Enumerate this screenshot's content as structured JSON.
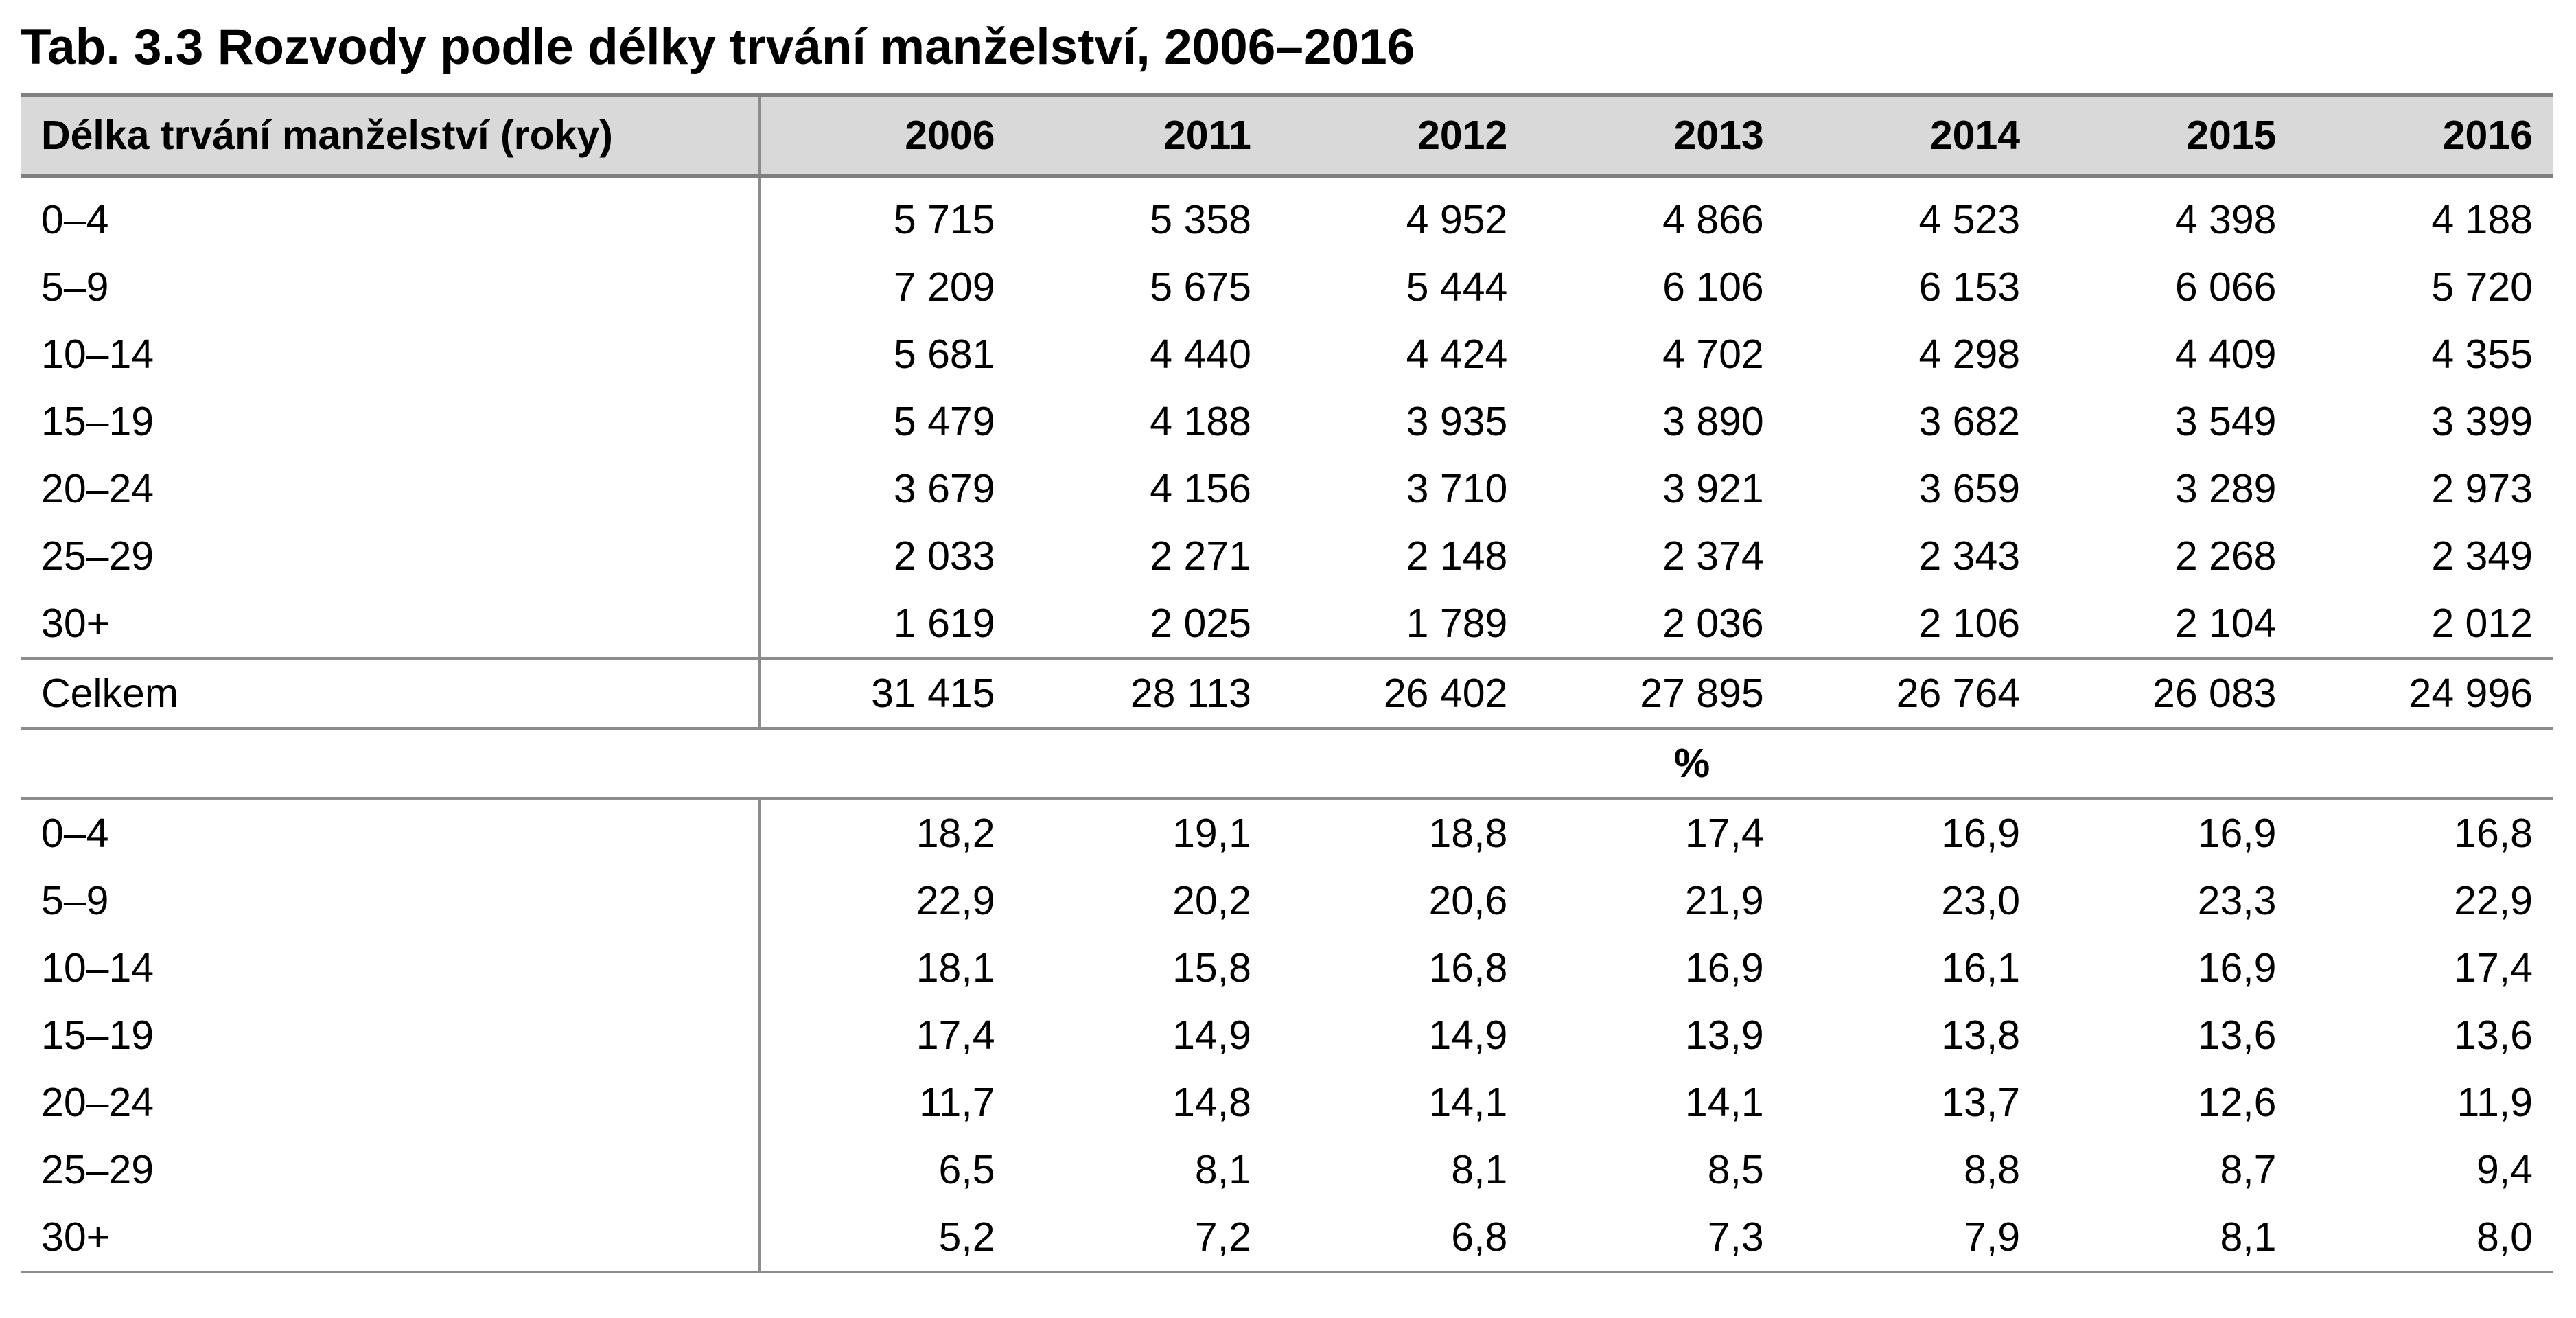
{
  "title": "Tab. 3.3 Rozvody podle délky trvání manželství, 2006–2016",
  "header": {
    "label": "Délka trvání manželství (roky)",
    "years": [
      "2006",
      "2011",
      "2012",
      "2013",
      "2014",
      "2015",
      "2016"
    ]
  },
  "absolute": [
    {
      "label": "0–4",
      "values": [
        "5 715",
        "5 358",
        "4 952",
        "4 866",
        "4 523",
        "4 398",
        "4 188"
      ]
    },
    {
      "label": "5–9",
      "values": [
        "7 209",
        "5 675",
        "5 444",
        "6 106",
        "6 153",
        "6 066",
        "5 720"
      ]
    },
    {
      "label": "10–14",
      "values": [
        "5 681",
        "4 440",
        "4 424",
        "4 702",
        "4 298",
        "4 409",
        "4 355"
      ]
    },
    {
      "label": "15–19",
      "values": [
        "5 479",
        "4 188",
        "3 935",
        "3 890",
        "3 682",
        "3 549",
        "3 399"
      ]
    },
    {
      "label": "20–24",
      "values": [
        "3 679",
        "4 156",
        "3 710",
        "3 921",
        "3 659",
        "3 289",
        "2 973"
      ]
    },
    {
      "label": "25–29",
      "values": [
        "2 033",
        "2 271",
        "2 148",
        "2 374",
        "2 343",
        "2 268",
        "2 349"
      ]
    },
    {
      "label": "30+",
      "values": [
        "1 619",
        "2 025",
        "1 789",
        "2 036",
        "2 106",
        "2 104",
        "2 012"
      ]
    }
  ],
  "total": {
    "label": "Celkem",
    "values": [
      "31 415",
      "28 113",
      "26 402",
      "27 895",
      "26 764",
      "26 083",
      "24 996"
    ]
  },
  "percent_label": "%",
  "percent": [
    {
      "label": "0–4",
      "values": [
        "18,2",
        "19,1",
        "18,8",
        "17,4",
        "16,9",
        "16,9",
        "16,8"
      ]
    },
    {
      "label": "5–9",
      "values": [
        "22,9",
        "20,2",
        "20,6",
        "21,9",
        "23,0",
        "23,3",
        "22,9"
      ]
    },
    {
      "label": "10–14",
      "values": [
        "18,1",
        "15,8",
        "16,8",
        "16,9",
        "16,1",
        "16,9",
        "17,4"
      ]
    },
    {
      "label": "15–19",
      "values": [
        "17,4",
        "14,9",
        "14,9",
        "13,9",
        "13,8",
        "13,6",
        "13,6"
      ]
    },
    {
      "label": "20–24",
      "values": [
        "11,7",
        "14,8",
        "14,1",
        "14,1",
        "13,7",
        "12,6",
        "11,9"
      ]
    },
    {
      "label": "25–29",
      "values": [
        "6,5",
        "8,1",
        "8,1",
        "8,5",
        "8,8",
        "8,7",
        "9,4"
      ]
    },
    {
      "label": "30+",
      "values": [
        "5,2",
        "7,2",
        "6,8",
        "7,3",
        "7,9",
        "8,1",
        "8,0"
      ]
    }
  ]
}
